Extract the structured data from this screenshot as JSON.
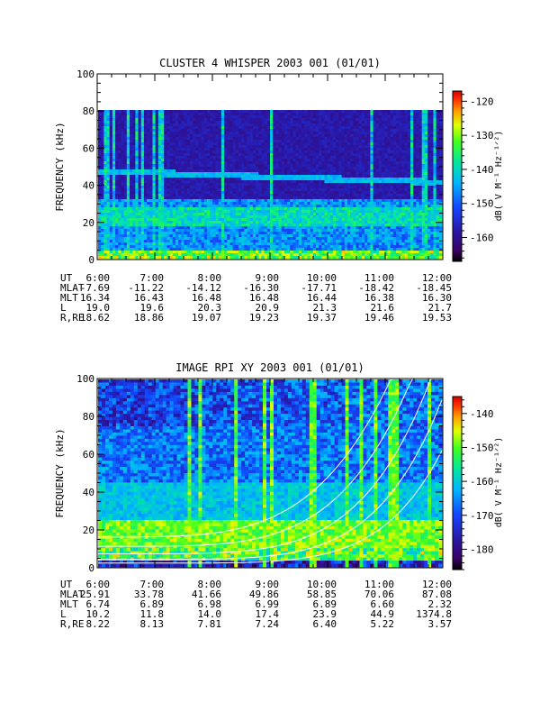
{
  "chart_data": [
    {
      "type": "heatmap",
      "title": "CLUSTER 4 WHISPER 2003 001 (01/01)",
      "ylabel": "FREQUENCY (kHz)",
      "ylim": [
        0,
        100
      ],
      "y_ticks": [
        "0",
        "20",
        "40",
        "60",
        "80",
        "100"
      ],
      "x_ticks": [
        "6:00",
        "7:00",
        "8:00",
        "9:00",
        "10:00",
        "11:00",
        "12:00"
      ],
      "colorbar": {
        "label": "dB( V M⁻¹ Hz⁻¹ᐟ²)",
        "range": [
          -167,
          -117
        ],
        "ticks": [
          "-120",
          "-130",
          "-140",
          "-150",
          "-160"
        ]
      },
      "ephemeris": [
        {
          "label": "UT",
          "values": [
            "6:00",
            "7:00",
            "8:00",
            "9:00",
            "10:00",
            "11:00",
            "12:00"
          ]
        },
        {
          "label": "MLAT",
          "values": [
            "-7.69",
            "-11.22",
            "-14.12",
            "-16.30",
            "-17.71",
            "-18.42",
            "-18.45"
          ]
        },
        {
          "label": "MLT",
          "values": [
            "16.34",
            "16.43",
            "16.48",
            "16.48",
            "16.44",
            "16.38",
            "16.30"
          ]
        },
        {
          "label": "L",
          "values": [
            "19.0",
            "19.6",
            "20.3",
            "20.9",
            "21.3",
            "21.6",
            "21.7"
          ]
        },
        {
          "label": "R,RE",
          "values": [
            "18.62",
            "18.86",
            "19.07",
            "19.23",
            "19.37",
            "19.46",
            "19.53"
          ]
        }
      ]
    },
    {
      "type": "heatmap",
      "title": "IMAGE RPI XY 2003 001 (01/01)",
      "ylabel": "FREQUENCY (kHz)",
      "ylim": [
        0,
        100
      ],
      "y_ticks": [
        "0",
        "20",
        "40",
        "60",
        "80",
        "100"
      ],
      "x_ticks": [
        "6:00",
        "7:00",
        "8:00",
        "9:00",
        "10:00",
        "11:00",
        "12:00"
      ],
      "colorbar": {
        "label": "dB( V M⁻¹ Hz⁻¹ᐟ²)",
        "range": [
          -186,
          -135
        ],
        "ticks": [
          "-140",
          "-150",
          "-160",
          "-170",
          "-180"
        ]
      },
      "ephemeris": [
        {
          "label": "UT",
          "values": [
            "6:00",
            "7:00",
            "8:00",
            "9:00",
            "10:00",
            "11:00",
            "12:00"
          ]
        },
        {
          "label": "MLAT",
          "values": [
            "25.91",
            "33.78",
            "41.66",
            "49.86",
            "58.85",
            "70.06",
            "87.08"
          ]
        },
        {
          "label": "MLT",
          "values": [
            "6.74",
            "6.89",
            "6.98",
            "6.99",
            "6.89",
            "6.60",
            "2.32"
          ]
        },
        {
          "label": "L",
          "values": [
            "10.2",
            "11.8",
            "14.0",
            "17.4",
            "23.9",
            "44.9",
            "1374.8"
          ]
        },
        {
          "label": "R,RE",
          "values": [
            "8.22",
            "8.13",
            "7.81",
            "7.24",
            "6.40",
            "5.22",
            "3.57"
          ]
        }
      ]
    }
  ]
}
